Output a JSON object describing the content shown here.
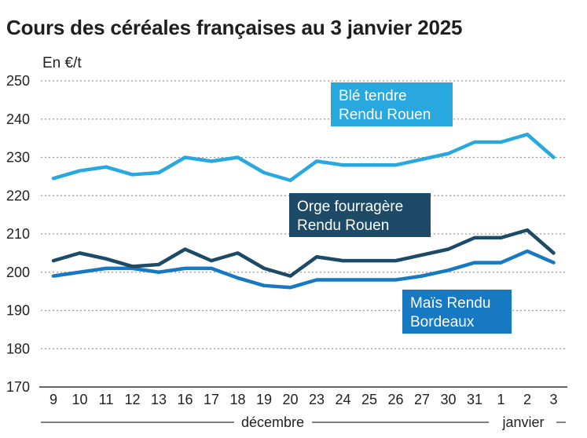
{
  "title": "Cours des céréales françaises au 3 janvier 2025",
  "chart_data": {
    "type": "line",
    "title": "Cours des céréales françaises au 3 janvier 2025",
    "ylabel": "En €/t",
    "xlabel": "",
    "ylim": [
      170,
      250
    ],
    "yticks": [
      170,
      180,
      190,
      200,
      210,
      220,
      230,
      240,
      250
    ],
    "grid": true,
    "categories": [
      "9",
      "10",
      "11",
      "12",
      "13",
      "16",
      "17",
      "18",
      "19",
      "20",
      "23",
      "24",
      "25",
      "26",
      "27",
      "30",
      "31",
      "1",
      "2",
      "3"
    ],
    "month_labels": [
      "décembre",
      "janvier"
    ],
    "series": [
      {
        "name_lines": [
          "Blé tendre",
          "Rendu Rouen"
        ],
        "color": "#29a8e0",
        "label_color": "#29a8e0",
        "values": [
          224.5,
          226.5,
          227.5,
          225.5,
          226,
          230,
          229,
          230,
          226,
          224,
          229,
          228,
          228,
          228,
          229.5,
          231,
          234,
          234,
          236,
          230
        ]
      },
      {
        "name_lines": [
          "Orge fourragère",
          "Rendu Rouen"
        ],
        "color": "#1d4a66",
        "label_color": "#1d4a66",
        "values": [
          203,
          205,
          203.5,
          201.5,
          202,
          206,
          203,
          205,
          201,
          199,
          204,
          203,
          203,
          203,
          204.5,
          206,
          209,
          209,
          211,
          205
        ]
      },
      {
        "name_lines": [
          "Maïs Rendu",
          "Bordeaux"
        ],
        "color": "#1679c2",
        "label_color": "#1679c2",
        "values": [
          199,
          200,
          201,
          201,
          200,
          201,
          201,
          198.5,
          196.5,
          196,
          198,
          198,
          198,
          198,
          199,
          200.5,
          202.5,
          202.5,
          205.5,
          202.5
        ]
      }
    ]
  }
}
